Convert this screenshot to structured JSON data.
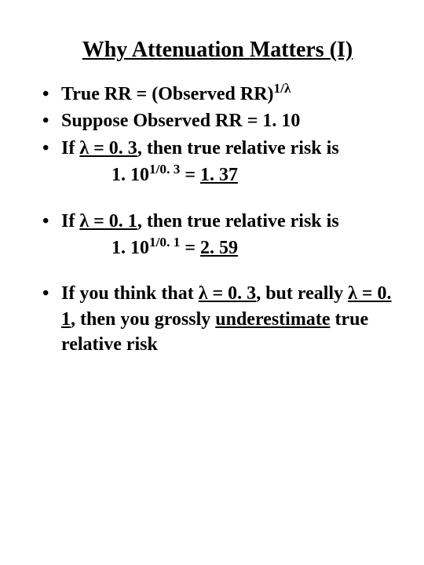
{
  "title": "Why Attenuation Matters (I)",
  "bullets": {
    "b1_pre": "True RR = (Observed RR)",
    "b1_sup": "1/λ",
    "b2": "Suppose Observed RR = 1. 10",
    "b3_pre": "If ",
    "b3_lambda_eq": "λ = 0. 3",
    "b3_post": ", then true relative risk is",
    "b3_line2_base": "1. 10",
    "b3_line2_sup": "1/0. 3",
    "b3_line2_eq": " = ",
    "b3_line2_val": "1. 37",
    "b4_pre": "If ",
    "b4_lambda_eq": "λ = 0. 1",
    "b4_post": ", then true relative risk is",
    "b4_line2_base": "1. 10",
    "b4_line2_sup": "1/0. 1",
    "b4_line2_eq": " = ",
    "b4_line2_val": "2. 59",
    "b5_part1": "If you think that ",
    "b5_lambda1": "λ = 0. 3",
    "b5_part2": ", but really ",
    "b5_lambda2": "λ = 0. 1",
    "b5_part3": ", then you grossly ",
    "b5_under": "underestimate",
    "b5_part4": " true relative risk"
  },
  "style": {
    "font_family": "Times New Roman",
    "title_fontsize": 28,
    "body_fontsize": 24,
    "font_weight_body": "bold",
    "text_color": "#000000",
    "background_color": "#ffffff",
    "bullet_marker": "•",
    "slide_width": 540,
    "slide_height": 720
  }
}
